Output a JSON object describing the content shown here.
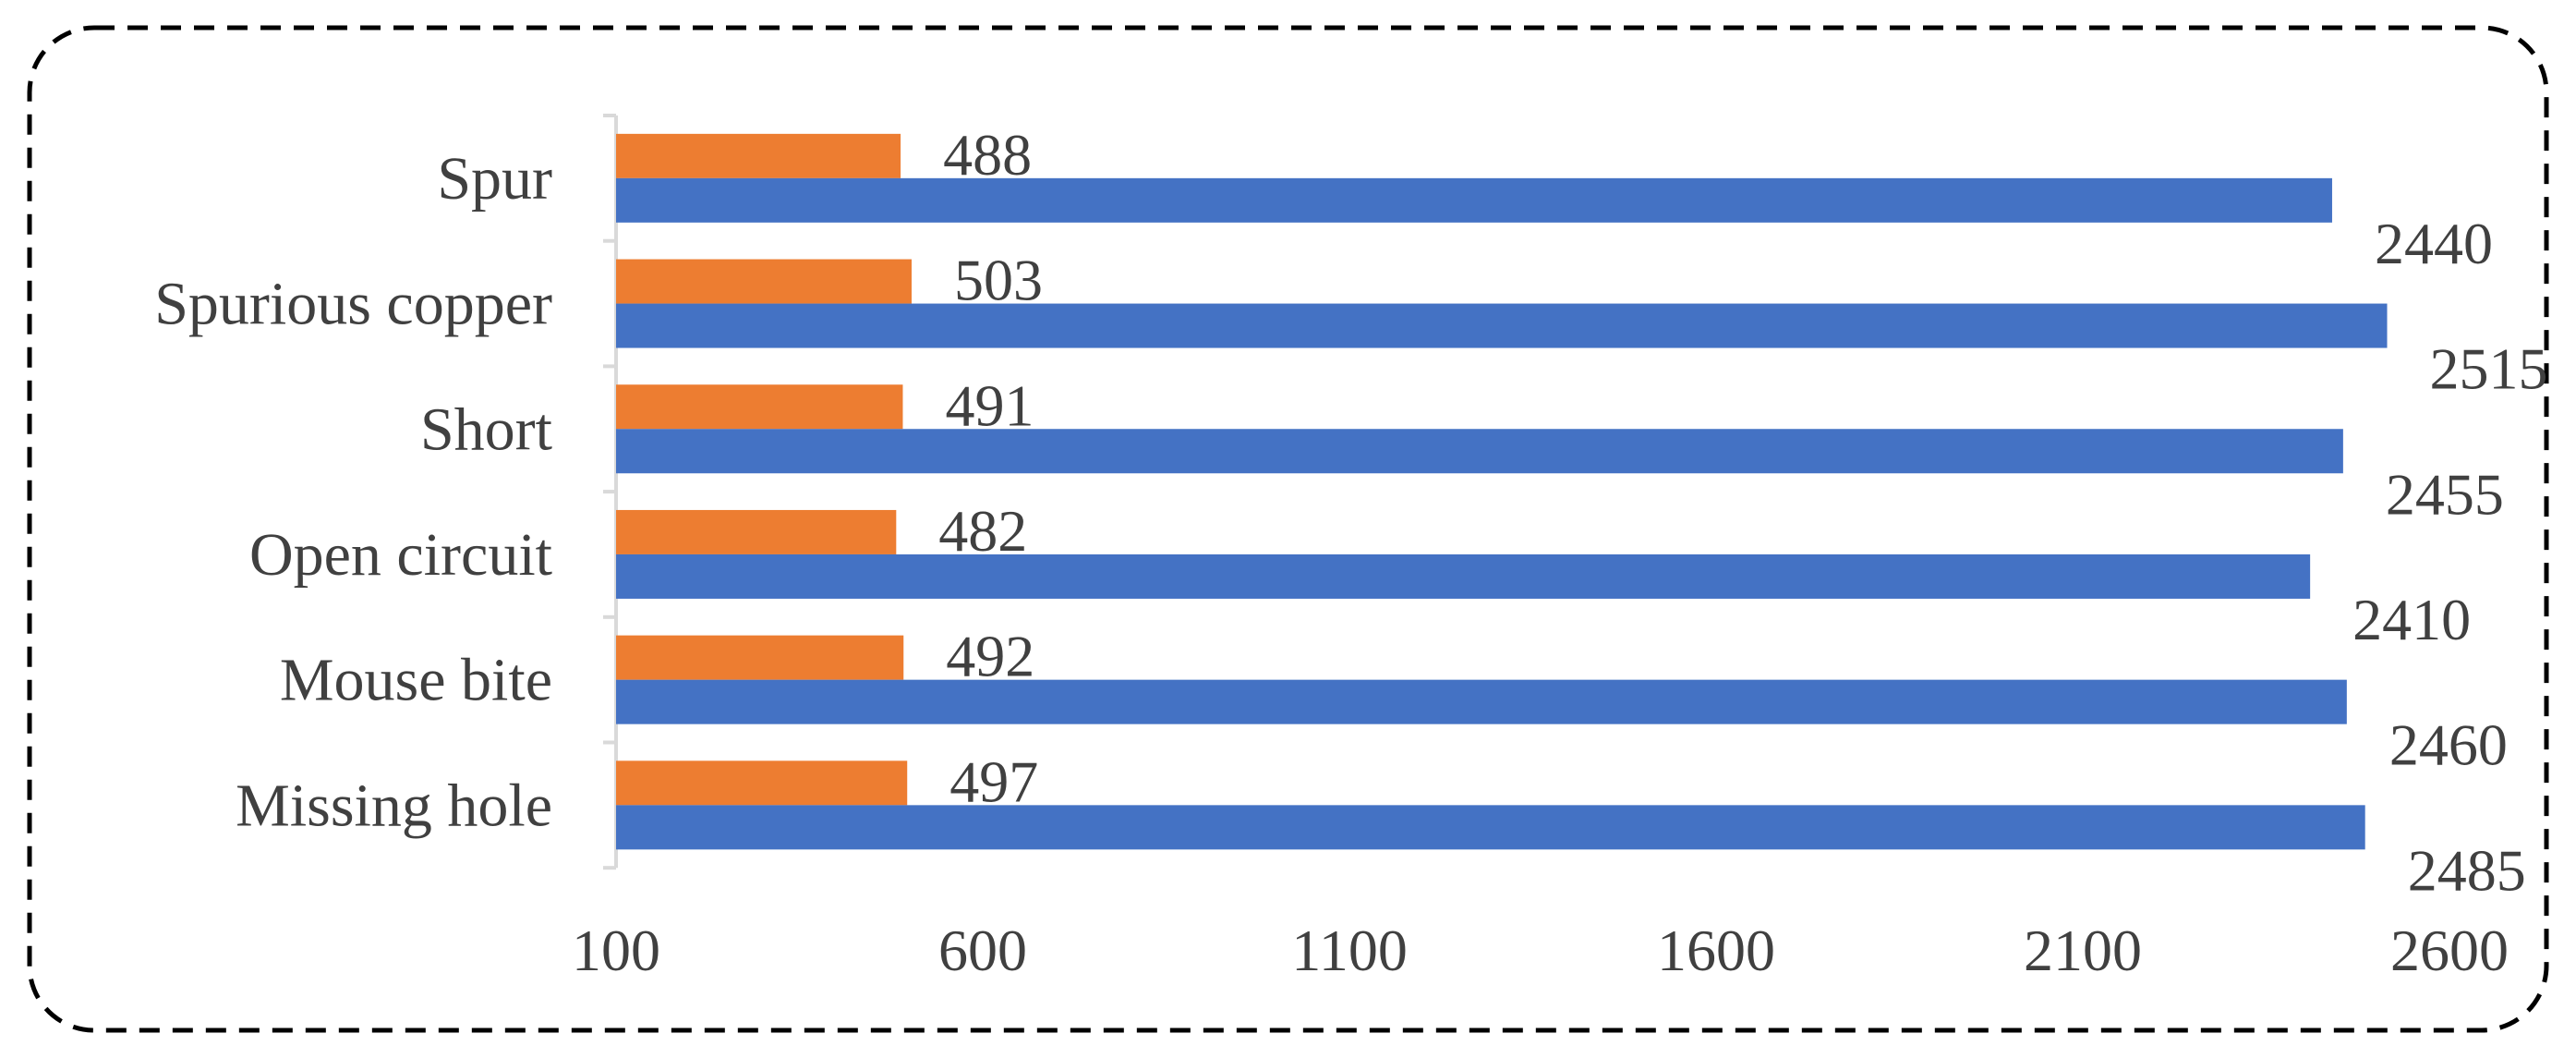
{
  "chart_data": {
    "type": "bar",
    "orientation": "horizontal",
    "categories": [
      "Spur",
      "Spurious copper",
      "Short",
      "Open circuit",
      "Mouse bite",
      "Missing hole"
    ],
    "series": [
      {
        "values": [
          488,
          503,
          491,
          482,
          492,
          497
        ]
      },
      {
        "values": [
          2440,
          2515,
          2455,
          2410,
          2460,
          2485
        ]
      }
    ],
    "xlim": [
      100,
      2600
    ],
    "xticks": [
      100,
      600,
      1100,
      1600,
      2100,
      2600
    ],
    "title": "",
    "xlabel": "",
    "ylabel": "",
    "grid": false,
    "legend": "none",
    "colors": {
      "series": [
        "#ED7D31",
        "#4472C4"
      ],
      "axis": "#D9D9D9",
      "text": "#404040",
      "border": "#000000"
    }
  }
}
